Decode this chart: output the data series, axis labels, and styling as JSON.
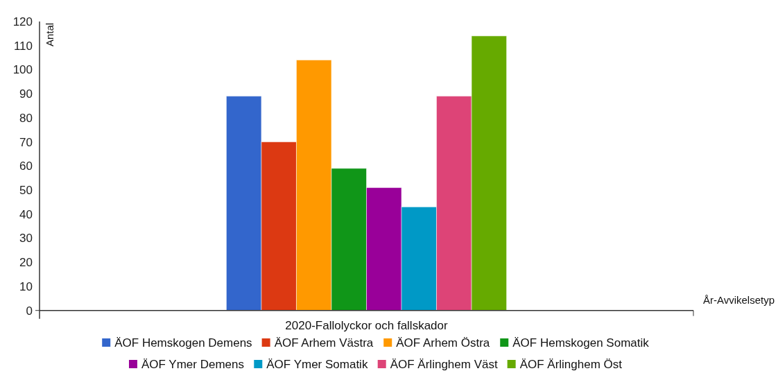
{
  "chart_data": {
    "type": "bar",
    "ylabel": "Antal",
    "xlabel": "År-Avvikelsetyp",
    "categories": [
      "2020-Fallolyckor och fallskador"
    ],
    "series": [
      {
        "name": "ÄOF Hemskogen Demens",
        "color": "#3366cc",
        "values": [
          89
        ]
      },
      {
        "name": "ÄOF Arhem Västra",
        "color": "#dc3912",
        "values": [
          70
        ]
      },
      {
        "name": "ÄOF Arhem Östra",
        "color": "#ff9900",
        "values": [
          104
        ]
      },
      {
        "name": "ÄOF Hemskogen Somatik",
        "color": "#109618",
        "values": [
          59
        ]
      },
      {
        "name": "ÄOF Ymer Demens",
        "color": "#990099",
        "values": [
          51
        ]
      },
      {
        "name": "ÄOF Ymer Somatik",
        "color": "#0099c6",
        "values": [
          43
        ]
      },
      {
        "name": "ÄOF Ärlinghem Väst",
        "color": "#dd4477",
        "values": [
          89
        ]
      },
      {
        "name": "ÄOF Ärlinghem Öst",
        "color": "#66aa00",
        "values": [
          114
        ]
      }
    ],
    "ylim": [
      0,
      120
    ],
    "yticks": [
      0,
      10,
      20,
      30,
      40,
      50,
      60,
      70,
      80,
      90,
      100,
      110,
      120
    ],
    "grid": false,
    "legend": "bottom"
  }
}
